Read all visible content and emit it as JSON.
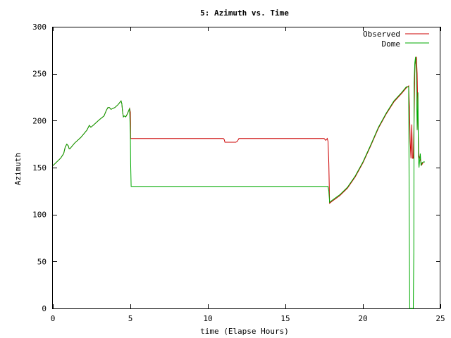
{
  "chart_data": {
    "type": "line",
    "title": "5: Azimuth vs. Time",
    "xlabel": "time (Elapse Hours)",
    "ylabel": "Azimuth",
    "xlim": [
      0,
      25
    ],
    "ylim": [
      0,
      300
    ],
    "xticks": [
      0,
      5,
      10,
      15,
      20,
      25
    ],
    "yticks": [
      0,
      50,
      100,
      150,
      200,
      250,
      300
    ],
    "grid": false,
    "legend_position": "top-right",
    "series": [
      {
        "name": "Observed",
        "color": "#cc0000",
        "points": [
          [
            0.0,
            152
          ],
          [
            0.25,
            156
          ],
          [
            0.5,
            160
          ],
          [
            0.7,
            165
          ],
          [
            0.8,
            172
          ],
          [
            0.9,
            175
          ],
          [
            1.0,
            173
          ],
          [
            1.05,
            170
          ],
          [
            1.1,
            170
          ],
          [
            1.4,
            176
          ],
          [
            1.8,
            182
          ],
          [
            2.2,
            190
          ],
          [
            2.35,
            195
          ],
          [
            2.45,
            193
          ],
          [
            2.6,
            195
          ],
          [
            3.0,
            201
          ],
          [
            3.3,
            205
          ],
          [
            3.45,
            211
          ],
          [
            3.55,
            214
          ],
          [
            3.65,
            214
          ],
          [
            3.75,
            212
          ],
          [
            4.0,
            214
          ],
          [
            4.2,
            217
          ],
          [
            4.35,
            220
          ],
          [
            4.4,
            221
          ],
          [
            4.45,
            218
          ],
          [
            4.5,
            209
          ],
          [
            4.55,
            204
          ],
          [
            4.6,
            205
          ],
          [
            4.7,
            204
          ],
          [
            4.8,
            207
          ],
          [
            4.9,
            211
          ],
          [
            4.95,
            213
          ],
          [
            5.0,
            209
          ],
          [
            5.01,
            196
          ],
          [
            5.02,
            181
          ],
          [
            7.0,
            181
          ],
          [
            9.0,
            181
          ],
          [
            11.0,
            181
          ],
          [
            11.05,
            180
          ],
          [
            11.1,
            177
          ],
          [
            11.8,
            177
          ],
          [
            11.9,
            178
          ],
          [
            12.0,
            181
          ],
          [
            14.0,
            181
          ],
          [
            16.0,
            181
          ],
          [
            17.5,
            181
          ],
          [
            17.6,
            179
          ],
          [
            17.7,
            181
          ],
          [
            17.75,
            178
          ],
          [
            17.8,
            155
          ],
          [
            17.85,
            112
          ],
          [
            18.0,
            114
          ],
          [
            18.5,
            120
          ],
          [
            19.0,
            128
          ],
          [
            19.5,
            140
          ],
          [
            20.0,
            155
          ],
          [
            20.5,
            173
          ],
          [
            21.0,
            192
          ],
          [
            21.5,
            207
          ],
          [
            22.0,
            220
          ],
          [
            22.5,
            229
          ],
          [
            22.8,
            235
          ],
          [
            22.95,
            237
          ],
          [
            23.0,
            215
          ],
          [
            23.05,
            178
          ],
          [
            23.1,
            160
          ],
          [
            23.15,
            196
          ],
          [
            23.2,
            160
          ],
          [
            23.25,
            160
          ],
          [
            23.3,
            200
          ],
          [
            23.35,
            260
          ],
          [
            23.45,
            268
          ],
          [
            23.5,
            250
          ],
          [
            23.55,
            200
          ],
          [
            23.6,
            163
          ],
          [
            23.7,
            158
          ],
          [
            23.8,
            153
          ],
          [
            23.9,
            156
          ],
          [
            24.0,
            156
          ]
        ]
      },
      {
        "name": "Dome",
        "color": "#00aa00",
        "points": [
          [
            0.0,
            152
          ],
          [
            0.25,
            156
          ],
          [
            0.5,
            160
          ],
          [
            0.7,
            165
          ],
          [
            0.8,
            172
          ],
          [
            0.9,
            175
          ],
          [
            1.0,
            173
          ],
          [
            1.05,
            170
          ],
          [
            1.1,
            170
          ],
          [
            1.4,
            176
          ],
          [
            1.8,
            182
          ],
          [
            2.2,
            190
          ],
          [
            2.35,
            195
          ],
          [
            2.45,
            193
          ],
          [
            2.6,
            195
          ],
          [
            3.0,
            201
          ],
          [
            3.3,
            205
          ],
          [
            3.45,
            211
          ],
          [
            3.55,
            214
          ],
          [
            3.65,
            214
          ],
          [
            3.75,
            212
          ],
          [
            4.0,
            214
          ],
          [
            4.2,
            217
          ],
          [
            4.35,
            220
          ],
          [
            4.4,
            221
          ],
          [
            4.45,
            218
          ],
          [
            4.5,
            209
          ],
          [
            4.55,
            204
          ],
          [
            4.6,
            205
          ],
          [
            4.7,
            204
          ],
          [
            4.8,
            207
          ],
          [
            4.9,
            211
          ],
          [
            4.95,
            213
          ],
          [
            5.0,
            185
          ],
          [
            5.02,
            155
          ],
          [
            5.05,
            130
          ],
          [
            8.0,
            130
          ],
          [
            11.0,
            130
          ],
          [
            14.0,
            130
          ],
          [
            17.0,
            130
          ],
          [
            17.75,
            130
          ],
          [
            17.8,
            125
          ],
          [
            17.85,
            113
          ],
          [
            18.0,
            115
          ],
          [
            18.5,
            121
          ],
          [
            19.0,
            129
          ],
          [
            19.5,
            141
          ],
          [
            20.0,
            156
          ],
          [
            20.5,
            174
          ],
          [
            21.0,
            193
          ],
          [
            21.5,
            208
          ],
          [
            22.0,
            221
          ],
          [
            22.5,
            230
          ],
          [
            22.8,
            236
          ],
          [
            22.95,
            236
          ],
          [
            23.0,
            60
          ],
          [
            23.02,
            0
          ],
          [
            23.25,
            0
          ],
          [
            23.28,
            60
          ],
          [
            23.3,
            240
          ],
          [
            23.35,
            262
          ],
          [
            23.4,
            268
          ],
          [
            23.45,
            240
          ],
          [
            23.5,
            190
          ],
          [
            23.55,
            230
          ],
          [
            23.58,
            160
          ],
          [
            23.62,
            150
          ],
          [
            23.7,
            165
          ],
          [
            23.75,
            152
          ],
          [
            23.8,
            155
          ],
          [
            23.9,
            156
          ],
          [
            24.0,
            156
          ]
        ]
      }
    ]
  }
}
